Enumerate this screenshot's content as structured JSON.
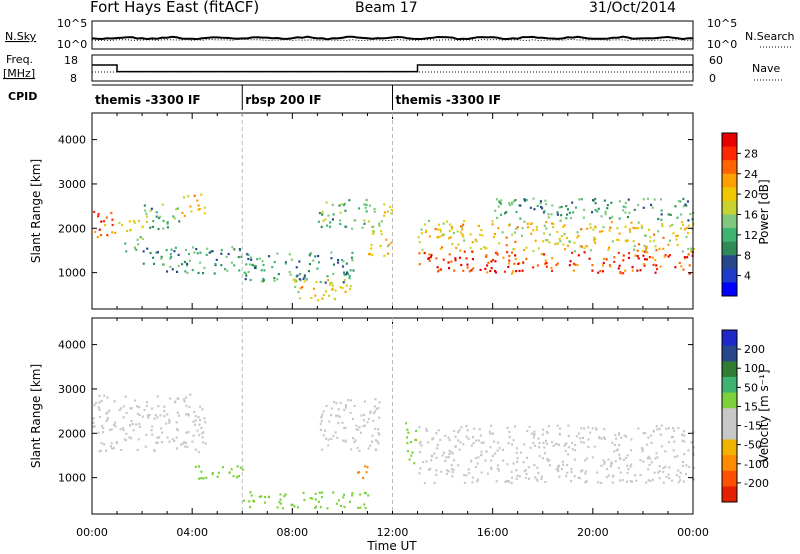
{
  "header": {
    "station": "Fort Hays East (fitACF)",
    "beam": "Beam 17",
    "date": "31/Oct/2014"
  },
  "top_panel": {
    "left_label": "N.Sky",
    "right_label": "N.Search",
    "left_ticks": [
      "10^5",
      "10^0"
    ],
    "right_ticks": [
      "10^5",
      "10^0"
    ]
  },
  "freq_panel": {
    "left_label_line1": "Freq.",
    "left_label_line2": "[MHz]",
    "right_label": "Nave",
    "left_ticks": [
      "18",
      "8"
    ],
    "right_ticks": [
      "60",
      "0"
    ],
    "freq_steps": [
      {
        "t_start": 0,
        "t_end": 1,
        "mhz": 14.5
      },
      {
        "t_start": 1,
        "t_end": 13,
        "mhz": 11.2
      },
      {
        "t_start": 13,
        "t_end": 24,
        "mhz": 14.5
      }
    ]
  },
  "cpid": {
    "label": "CPID",
    "segments": [
      {
        "t_start": 0,
        "t_end": 6,
        "name": "themis -3300 IF"
      },
      {
        "t_start": 6,
        "t_end": 12,
        "name": "rbsp 200 IF"
      },
      {
        "t_start": 12,
        "t_end": 24,
        "name": "themis -3300 IF"
      }
    ]
  },
  "power_colorbar": {
    "label": "Power [dB]",
    "ticks": [
      "28",
      "24",
      "20",
      "16",
      "12",
      "8",
      "4"
    ],
    "colors": [
      "#0000ff",
      "#1e3cc8",
      "#28468c",
      "#2e8b57",
      "#3cb371",
      "#7fc97f",
      "#c8d230",
      "#f0c800",
      "#ffa000",
      "#ff6400",
      "#ff2800",
      "#e60000"
    ]
  },
  "velocity_colorbar": {
    "label": "Velocity [m s⁻¹]",
    "ticks": [
      "200",
      "100",
      "50",
      "15",
      "-15",
      "-50",
      "-100",
      "-200"
    ],
    "colors": [
      "#1e28c8",
      "#28468c",
      "#2e7d32",
      "#3cb371",
      "#7cd23c",
      "#c8c8c8",
      "#c8c8c8",
      "#f0b400",
      "#ff8c00",
      "#ff5000",
      "#e61e00"
    ]
  },
  "axes": {
    "ylabel": "Slant Range [km]",
    "xlabel": "Time UT",
    "yticks": [
      "4000",
      "3000",
      "2000",
      "1000"
    ],
    "xticks": [
      "00:00",
      "04:00",
      "08:00",
      "12:00",
      "16:00",
      "20:00",
      "00:00"
    ]
  },
  "chart_data": [
    {
      "type": "heatmap",
      "title": "",
      "quantity": "Power [dB]",
      "xlabel": "Time UT",
      "ylabel": "Slant Range [km]",
      "xlim": [
        0,
        24
      ],
      "ylim": [
        180,
        4600
      ],
      "regions": [
        {
          "t": [
            0.0,
            1.0
          ],
          "r": [
            1800,
            2400
          ],
          "db": 24
        },
        {
          "t": [
            1.0,
            2.0
          ],
          "r": [
            1500,
            2200
          ],
          "db": 16
        },
        {
          "t": [
            2.0,
            3.5
          ],
          "r": [
            2000,
            2600
          ],
          "db": 12
        },
        {
          "t": [
            3.5,
            4.5
          ],
          "r": [
            2300,
            2800
          ],
          "db": 18
        },
        {
          "t": [
            2.0,
            6.0
          ],
          "r": [
            1000,
            1600
          ],
          "db": 10
        },
        {
          "t": [
            6.0,
            10.5
          ],
          "r": [
            800,
            1500
          ],
          "db": 10
        },
        {
          "t": [
            8.0,
            10.5
          ],
          "r": [
            400,
            900
          ],
          "db": 18
        },
        {
          "t": [
            9.0,
            11.0
          ],
          "r": [
            2000,
            2700
          ],
          "db": 12
        },
        {
          "t": [
            11.0,
            12.0
          ],
          "r": [
            1400,
            2600
          ],
          "db": 18
        },
        {
          "t": [
            13.0,
            24.0
          ],
          "r": [
            1000,
            1500
          ],
          "db": 26
        },
        {
          "t": [
            13.0,
            24.0
          ],
          "r": [
            1500,
            2200
          ],
          "db": 18
        },
        {
          "t": [
            16.0,
            24.0
          ],
          "r": [
            2200,
            2700
          ],
          "db": 10
        }
      ]
    },
    {
      "type": "heatmap",
      "title": "",
      "quantity": "Velocity [m s⁻¹]",
      "xlabel": "Time UT",
      "ylabel": "Slant Range [km]",
      "xlim": [
        0,
        24
      ],
      "ylim": [
        180,
        4600
      ],
      "regions": [
        {
          "t": [
            0.0,
            4.5
          ],
          "r": [
            1600,
            2900
          ],
          "vel": 0
        },
        {
          "t": [
            3.5,
            6.0
          ],
          "r": [
            1000,
            1300
          ],
          "vel": 30
        },
        {
          "t": [
            6.0,
            11.0
          ],
          "r": [
            300,
            700
          ],
          "vel": 30
        },
        {
          "t": [
            9.0,
            11.5
          ],
          "r": [
            1600,
            2800
          ],
          "vel": 0
        },
        {
          "t": [
            10.5,
            11.0
          ],
          "r": [
            1000,
            1400
          ],
          "vel": -60
        },
        {
          "t": [
            12.5,
            13.0
          ],
          "r": [
            1300,
            2300
          ],
          "vel": 30
        },
        {
          "t": [
            13.0,
            24.0
          ],
          "r": [
            900,
            2200
          ],
          "vel": 0
        }
      ]
    }
  ]
}
